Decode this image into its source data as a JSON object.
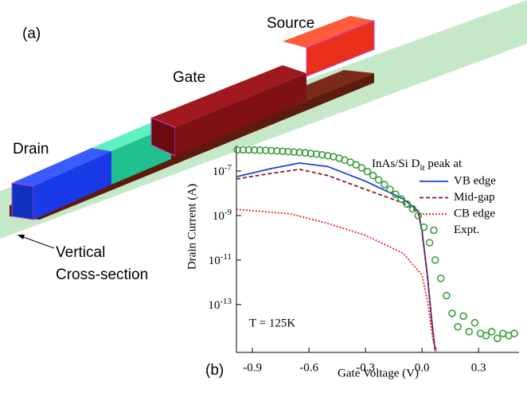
{
  "panel_a": {
    "label": "(a)",
    "regions": {
      "drain": "Drain",
      "gate": "Gate",
      "source": "Source"
    },
    "cross_section": [
      "Vertical",
      "Cross-section"
    ]
  },
  "chart_data": {
    "type": "line",
    "panel_label": "(b)",
    "x_label": "Gate Voltage (V)",
    "y_label": "Drain Current (A)",
    "annotation": "T = 125K",
    "legend_title": [
      "InAs/Si D",
      "it",
      " peak at"
    ],
    "legend_position": "upper right",
    "y_log": true,
    "xlim": [
      -0.985,
      0.515
    ],
    "xticks": [
      -0.9,
      -0.6,
      -0.3,
      {
        "value": 0,
        "label": "0.0"
      },
      0.3
    ],
    "ylim": [
      7e-16,
      1.4e-06
    ],
    "yticks": [
      {
        "value": 1e-07,
        "label": "10-7"
      },
      {
        "value": 1e-09,
        "label": "10-9"
      },
      {
        "value": 1e-11,
        "label": "10-11"
      },
      {
        "value": 1e-13,
        "label": "10-13"
      }
    ],
    "series": [
      {
        "name": "VB edge",
        "color": "#1f3fe0",
        "style": "solid",
        "x": [
          -0.985,
          -0.8,
          -0.65,
          -0.5,
          -0.3,
          -0.1,
          -0.02,
          0.0,
          0.03,
          0.05,
          0.07
        ],
        "values": [
          5.6e-08,
          1.3e-07,
          2.3e-07,
          1.6e-07,
          3.5e-08,
          5.6e-09,
          1.6e-09,
          2e-10,
          1.6e-12,
          2.5e-14,
          8e-16
        ]
      },
      {
        "name": "Mid-gap",
        "color": "#8b1a1a",
        "style": "dashed",
        "x": [
          -0.985,
          -0.8,
          -0.65,
          -0.5,
          -0.3,
          -0.1,
          -0.02,
          0.0,
          0.03,
          0.05,
          0.07
        ],
        "values": [
          4.4e-08,
          7.9e-08,
          1.2e-07,
          6.3e-08,
          1.5e-08,
          3.7e-09,
          1.4e-09,
          2e-10,
          1.6e-12,
          2.5e-14,
          8e-16
        ]
      },
      {
        "name": "CB edge",
        "color": "#ee2222",
        "style": "dotted",
        "x": [
          -0.985,
          -0.7,
          -0.5,
          -0.3,
          -0.1,
          0.0,
          0.03,
          0.06,
          0.08
        ],
        "values": [
          1.9e-09,
          1.2e-09,
          4.4e-10,
          1.3e-10,
          2e-11,
          2.1e-12,
          1.3e-13,
          2e-15,
          8e-16
        ]
      },
      {
        "name": "Expt.",
        "color": "#2e9a2e",
        "style": "markers",
        "x": [
          -0.98,
          -0.95,
          -0.92,
          -0.89,
          -0.86,
          -0.83,
          -0.8,
          -0.77,
          -0.74,
          -0.71,
          -0.68,
          -0.65,
          -0.62,
          -0.59,
          -0.56,
          -0.53,
          -0.5,
          -0.47,
          -0.44,
          -0.41,
          -0.38,
          -0.35,
          -0.32,
          -0.29,
          -0.26,
          -0.23,
          -0.2,
          -0.17,
          -0.14,
          -0.11,
          -0.08,
          -0.05,
          -0.02,
          0.01,
          0.04,
          0.07,
          0.1,
          0.13,
          0.16,
          0.19,
          0.22,
          0.25,
          0.28,
          0.31,
          0.34,
          0.37,
          0.4,
          0.43,
          0.46,
          0.49
        ],
        "values": [
          9e-07,
          9e-07,
          9e-07,
          8.8e-07,
          8.7e-07,
          8.5e-07,
          8.3e-07,
          8e-07,
          7.8e-07,
          7.5e-07,
          7.2e-07,
          6.9e-07,
          6.6e-07,
          6.2e-07,
          5.8e-07,
          5.4e-07,
          4.9e-07,
          4.4e-07,
          3.8e-07,
          3.1e-07,
          2.5e-07,
          1.9e-07,
          1.4e-07,
          9.5e-08,
          6.3e-08,
          4e-08,
          2.5e-08,
          1.5e-08,
          9e-09,
          5.5e-09,
          3.3e-09,
          2e-09,
          1e-09,
          3e-10,
          6e-11,
          1e-11,
          1.5e-12,
          2.5e-13,
          4e-14,
          1e-14,
          3e-14,
          6e-15,
          1.5e-14,
          5e-15,
          4e-15,
          6e-15,
          3e-15,
          5e-15,
          4e-15,
          5e-15
        ]
      }
    ]
  }
}
